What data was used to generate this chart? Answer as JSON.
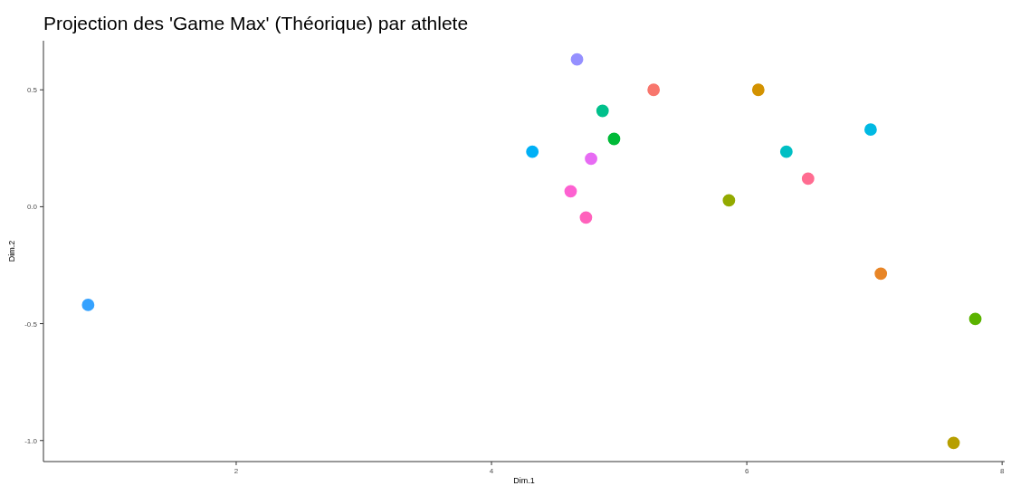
{
  "chart_data": {
    "type": "scatter",
    "title": "Projection des 'Game Max' (Théorique) par athlete",
    "xlabel": "Dim.1",
    "ylabel": "Dim.2",
    "x": [
      0.84,
      4.32,
      4.67,
      5.27,
      4.87,
      4.96,
      4.78,
      4.62,
      4.74,
      6.09,
      6.31,
      6.48,
      5.86,
      6.97,
      7.05,
      7.79,
      7.62
    ],
    "values": [
      -0.42,
      0.235,
      0.63,
      0.5,
      0.41,
      0.29,
      0.205,
      0.066,
      -0.046,
      0.5,
      0.235,
      0.12,
      0.027,
      0.33,
      -0.286,
      -0.48,
      -1.01
    ],
    "colors": [
      "#35a2ff",
      "#00b0f6",
      "#9590ff",
      "#f8766d",
      "#00c08b",
      "#00ba38",
      "#e76bf3",
      "#fd61d1",
      "#ff62bc",
      "#d39200",
      "#00bfc4",
      "#ff6c91",
      "#93aa00",
      "#00b9e3",
      "#e88526",
      "#5bb300",
      "#b79f00"
    ],
    "xlim": [
      0.49,
      8.02
    ],
    "ylim": [
      -1.09,
      0.71
    ],
    "xticks": [
      2,
      4,
      6,
      8
    ],
    "yticks": [
      {
        "value": 0.5,
        "label": "0.5"
      },
      {
        "value": 0,
        "label": "0.0"
      },
      {
        "value": -0.5,
        "label": "-0.5"
      },
      {
        "value": -1,
        "label": "-1.0"
      }
    ],
    "grid": false,
    "marker": "circle"
  }
}
